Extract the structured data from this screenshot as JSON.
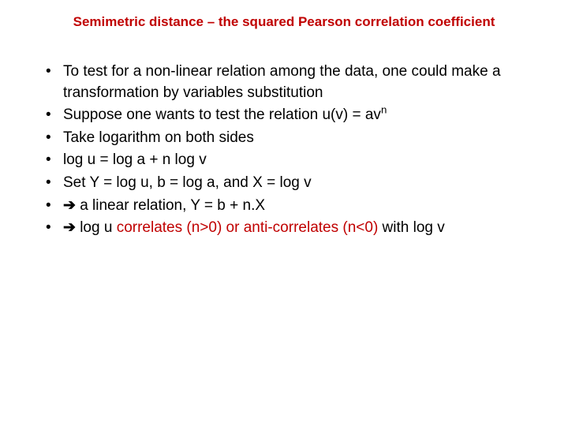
{
  "title_color": "#c00000",
  "text_color": "#000000",
  "background_color": "#ffffff",
  "title": "Semimetric distance – the squared Pearson correlation coefficient",
  "bullets": {
    "b1": "To test for a non-linear relation among the data, one could make a transformation by variables substitution",
    "b2_pre": "Suppose one wants to test the relation u(v) = av",
    "b2_sup": "n",
    "b3": "Take logarithm on both sides",
    "b4": "log u = log a + n  log v",
    "b5": "Set Y = log u, b = log a, and X = log v",
    "b6_arrow": "➔",
    "b6_rest": " a linear relation, Y = b + n.X",
    "b7_arrow": "➔",
    "b7_a": " log u ",
    "b7_b": "correlates (n>0) or anti-correlates (n<0)",
    "b7_c": " with log v"
  }
}
